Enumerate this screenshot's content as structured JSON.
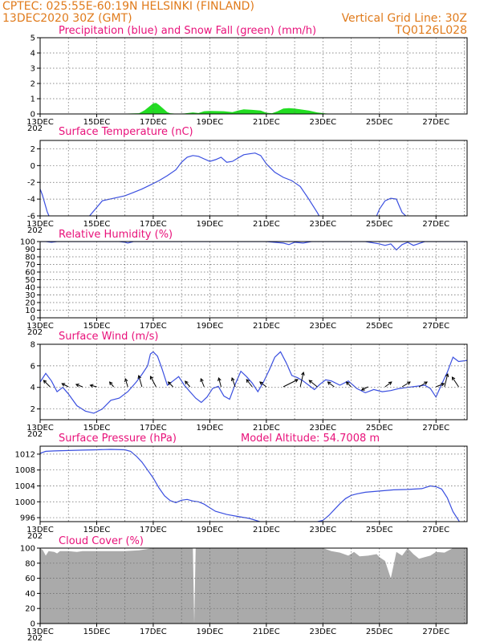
{
  "header": {
    "line1_left": "CPTEC:  025:55E-60:19N  HELSINKI (FINLAND)",
    "line2_left": "13DEC2020 30Z (GMT)",
    "line2_right": "Vertical Grid Line: 30Z",
    "line3_right": "TQ0126L028"
  },
  "x_axis": {
    "labels": [
      "13DEC",
      "15DEC",
      "17DEC",
      "19DEC",
      "21DEC",
      "23DEC",
      "25DEC",
      "27DEC"
    ],
    "label_days": [
      0,
      2,
      4,
      6,
      8,
      10,
      12,
      14
    ],
    "xlim_days": [
      0,
      15.1
    ],
    "year_stub": "202"
  },
  "colors": {
    "header": "#e07b1c",
    "panel_title": "#e8117a",
    "line": "#3a4fe0",
    "snow": "#22dd22",
    "cloud": "#aaaaaa",
    "grid": "#666666"
  },
  "chart_data": [
    {
      "type": "area",
      "title": "Precipitation (blue) and Snow Fall (green) (mm/h)",
      "ylim": [
        0,
        5
      ],
      "yticks": [
        0,
        1,
        2,
        3,
        4,
        5
      ],
      "series": [
        {
          "name": "Precipitation",
          "color": "#3a4fe0",
          "x": [
            0,
            15
          ],
          "values": [
            0,
            0
          ]
        },
        {
          "name": "Snow Fall",
          "color": "#22dd22",
          "x": [
            0,
            2.5,
            3.5,
            3.7,
            3.9,
            4.0,
            4.1,
            4.2,
            4.35,
            4.5,
            4.6,
            4.8,
            5.1,
            5.4,
            5.6,
            5.8,
            6.0,
            6.2,
            6.5,
            6.8,
            7.0,
            7.2,
            7.5,
            7.8,
            8.0,
            8.2,
            8.4,
            8.6,
            8.8,
            9.0,
            9.2,
            9.5,
            9.8,
            10.1,
            10.5,
            15.1
          ],
          "values": [
            0,
            0,
            0.05,
            0.25,
            0.55,
            0.7,
            0.72,
            0.6,
            0.35,
            0.12,
            0.05,
            0.02,
            0.03,
            0.1,
            0.06,
            0.18,
            0.2,
            0.19,
            0.18,
            0.12,
            0.22,
            0.3,
            0.27,
            0.22,
            0.08,
            0.05,
            0.18,
            0.35,
            0.38,
            0.35,
            0.3,
            0.22,
            0.1,
            0.03,
            0,
            0
          ]
        }
      ]
    },
    {
      "type": "line",
      "title": "Surface Temperature (nC)",
      "ylim": [
        -6,
        3
      ],
      "yticks": [
        -6,
        -4,
        -2,
        0,
        2
      ],
      "series": [
        {
          "name": "Surface Temperature",
          "x": [
            0,
            0.08,
            0.25,
            0.5,
            1,
            1.5,
            1.8,
            2.2,
            2.6,
            3.0,
            3.3,
            3.6,
            3.9,
            4.2,
            4.5,
            4.8,
            5.0,
            5.2,
            5.4,
            5.6,
            5.8,
            6.0,
            6.2,
            6.4,
            6.6,
            6.8,
            7.0,
            7.2,
            7.4,
            7.6,
            7.8,
            8.0,
            8.3,
            8.6,
            8.9,
            9.2,
            9.5,
            9.8,
            10.0,
            11.8,
            12.0,
            12.2,
            12.4,
            12.6,
            12.7,
            12.8,
            13.0,
            13.2,
            15.1
          ],
          "values": [
            -2.8,
            -3.5,
            -5.5,
            -7.5,
            -7.8,
            -7.0,
            -5.8,
            -4.2,
            -3.9,
            -3.6,
            -3.2,
            -2.8,
            -2.3,
            -1.8,
            -1.2,
            -0.5,
            0.4,
            1.0,
            1.2,
            1.1,
            0.8,
            0.5,
            0.7,
            1.0,
            0.4,
            0.5,
            0.9,
            1.3,
            1.4,
            1.5,
            1.2,
            0.2,
            -0.8,
            -1.4,
            -1.8,
            -2.5,
            -4.0,
            -5.6,
            -6.8,
            -6.8,
            -5.2,
            -4.2,
            -3.9,
            -4.0,
            -4.8,
            -5.6,
            -6.2,
            -7.0,
            -7.0
          ]
        }
      ]
    },
    {
      "type": "line",
      "title": "Relative Humidity (%)",
      "ylim": [
        0,
        100
      ],
      "yticks": [
        0,
        10,
        20,
        30,
        40,
        50,
        60,
        70,
        80,
        90,
        100
      ],
      "series": [
        {
          "name": "Relative Humidity",
          "x": [
            0,
            0.2,
            0.4,
            0.6,
            1.0,
            2.0,
            2.8,
            3.0,
            3.1,
            3.3,
            4.0,
            6.0,
            8.0,
            8.6,
            8.8,
            9.0,
            9.3,
            9.6,
            10.0,
            11.5,
            12.0,
            12.2,
            12.4,
            12.6,
            12.8,
            13.0,
            13.2,
            13.6,
            15.1
          ],
          "values": [
            100,
            100,
            99,
            100,
            100,
            100,
            100,
            99,
            98,
            100,
            100,
            100,
            100,
            98,
            96,
            99,
            98,
            100,
            100,
            100,
            97,
            95,
            97,
            89,
            96,
            99,
            95,
            100,
            100
          ]
        }
      ]
    },
    {
      "type": "line",
      "title": "Surface Wind (m/s)",
      "ylim": [
        1,
        8
      ],
      "yticks": [
        2,
        4,
        6,
        8
      ],
      "series": [
        {
          "name": "Surface Wind",
          "x": [
            0,
            0.2,
            0.4,
            0.6,
            0.8,
            1.0,
            1.3,
            1.6,
            1.9,
            2.2,
            2.5,
            2.8,
            3.1,
            3.4,
            3.6,
            3.8,
            3.9,
            4.0,
            4.15,
            4.3,
            4.5,
            4.7,
            4.9,
            5.1,
            5.3,
            5.5,
            5.7,
            5.9,
            6.1,
            6.3,
            6.5,
            6.7,
            6.9,
            7.1,
            7.3,
            7.5,
            7.7,
            7.9,
            8.1,
            8.3,
            8.5,
            8.7,
            8.9,
            9.1,
            9.3,
            9.5,
            9.7,
            9.9,
            10.1,
            10.3,
            10.6,
            10.9,
            11.2,
            11.5,
            11.8,
            12.1,
            12.4,
            12.7,
            13.0,
            13.3,
            13.6,
            13.8,
            14.0,
            14.2,
            14.4,
            14.6,
            14.8,
            15.1
          ],
          "values": [
            4.5,
            5.3,
            4.6,
            3.6,
            4.0,
            3.4,
            2.3,
            1.8,
            1.6,
            2.0,
            2.8,
            3.0,
            3.6,
            4.5,
            5.2,
            6.0,
            7.1,
            7.3,
            6.9,
            5.8,
            4.2,
            4.6,
            5.0,
            4.2,
            3.6,
            3.0,
            2.6,
            3.1,
            3.9,
            4.1,
            3.2,
            2.9,
            4.3,
            5.5,
            5.0,
            4.4,
            3.6,
            4.5,
            5.6,
            6.8,
            7.3,
            6.3,
            5.1,
            4.9,
            4.6,
            4.2,
            3.8,
            4.3,
            4.7,
            4.6,
            4.2,
            4.6,
            3.9,
            3.5,
            3.8,
            3.6,
            3.7,
            3.9,
            4.0,
            4.1,
            4.2,
            3.9,
            3.1,
            4.3,
            5.4,
            6.8,
            6.4,
            6.5
          ]
        }
      ],
      "arrows": [
        {
          "x": 0.35,
          "dx": -8,
          "dy": -8
        },
        {
          "x": 1.0,
          "dx": -8,
          "dy": -4
        },
        {
          "x": 1.5,
          "dx": -8,
          "dy": -3
        },
        {
          "x": 2.0,
          "dx": -8,
          "dy": -2
        },
        {
          "x": 2.6,
          "dx": -5,
          "dy": -6
        },
        {
          "x": 3.1,
          "dx": -3,
          "dy": -10
        },
        {
          "x": 3.6,
          "dx": -4,
          "dy": -14
        },
        {
          "x": 4.1,
          "dx": -7,
          "dy": -13
        },
        {
          "x": 4.7,
          "dx": -6,
          "dy": -6
        },
        {
          "x": 5.3,
          "dx": -6,
          "dy": -7
        },
        {
          "x": 5.8,
          "dx": -4,
          "dy": -10
        },
        {
          "x": 6.4,
          "dx": -3,
          "dy": -11
        },
        {
          "x": 6.9,
          "dx": -4,
          "dy": -11
        },
        {
          "x": 7.5,
          "dx": -7,
          "dy": -9
        },
        {
          "x": 8.0,
          "dx": -8,
          "dy": -6
        },
        {
          "x": 8.6,
          "dx": 18,
          "dy": -9
        },
        {
          "x": 9.2,
          "dx": 4,
          "dy": -18
        },
        {
          "x": 9.8,
          "dx": -10,
          "dy": -8
        },
        {
          "x": 10.4,
          "dx": -8,
          "dy": -6
        },
        {
          "x": 11.0,
          "dx": -6,
          "dy": -6
        },
        {
          "x": 11.6,
          "dx": -8,
          "dy": 4
        },
        {
          "x": 12.2,
          "dx": 8,
          "dy": -6
        },
        {
          "x": 12.8,
          "dx": 10,
          "dy": -6
        },
        {
          "x": 13.4,
          "dx": 10,
          "dy": -6
        },
        {
          "x": 14.0,
          "dx": 10,
          "dy": -4
        },
        {
          "x": 14.3,
          "dx": 4,
          "dy": -16
        },
        {
          "x": 14.8,
          "dx": -8,
          "dy": -12
        }
      ]
    },
    {
      "type": "line",
      "title": "Surface Pressure (hPa)",
      "annotation": "Model Altitude: 54.7008 m",
      "ylim": [
        995,
        1014
      ],
      "yticks": [
        996,
        1000,
        1004,
        1008,
        1012
      ],
      "series": [
        {
          "name": "Surface Pressure",
          "x": [
            0,
            0.2,
            0.5,
            1.0,
            1.5,
            2.0,
            2.5,
            3.0,
            3.2,
            3.4,
            3.6,
            3.8,
            4.0,
            4.2,
            4.4,
            4.6,
            4.8,
            5.0,
            5.2,
            5.4,
            5.6,
            5.8,
            6.0,
            6.2,
            6.6,
            7.0,
            7.4,
            8.0,
            9.5,
            10.0,
            10.2,
            10.4,
            10.6,
            10.8,
            11.0,
            11.2,
            11.5,
            12.0,
            12.5,
            13.0,
            13.5,
            13.8,
            14.0,
            14.2,
            14.4,
            14.6,
            15.1
          ],
          "values": [
            1012.2,
            1012.7,
            1012.8,
            1012.9,
            1013.0,
            1013.1,
            1013.2,
            1013.1,
            1012.7,
            1011.5,
            1010.0,
            1008.0,
            1006.0,
            1003.5,
            1001.5,
            1000.3,
            999.8,
            1000.4,
            1000.6,
            1000.2,
            1000.0,
            999.4,
            998.5,
            997.6,
            996.8,
            996.3,
            995.8,
            994.5,
            994.5,
            995.3,
            996.5,
            998.0,
            999.5,
            1000.8,
            1001.6,
            1002.0,
            1002.4,
            1002.7,
            1003.0,
            1003.1,
            1003.3,
            1004.0,
            1003.8,
            1003.2,
            1001.0,
            997.5,
            992.0
          ]
        }
      ]
    },
    {
      "type": "area",
      "title": "Cloud Cover (%)",
      "ylim": [
        0,
        100
      ],
      "yticks": [
        0,
        20,
        40,
        60,
        80,
        100
      ],
      "series": [
        {
          "name": "Cloud Cover",
          "color": "#aaaaaa",
          "x": [
            0,
            0.1,
            0.2,
            0.3,
            0.5,
            0.6,
            0.7,
            1.0,
            1.3,
            1.5,
            2.0,
            2.5,
            3.0,
            3.5,
            4.0,
            4.5,
            5.0,
            5.3,
            5.4,
            5.45,
            5.5,
            6.0,
            7.0,
            8.0,
            9.0,
            10.0,
            10.3,
            10.6,
            10.9,
            11.1,
            11.3,
            11.6,
            11.9,
            12.0,
            12.2,
            12.4,
            12.6,
            12.8,
            13.0,
            13.2,
            13.4,
            13.6,
            13.8,
            14.0,
            14.3,
            14.6,
            15.1
          ],
          "values": [
            100,
            97,
            90,
            96,
            95,
            93,
            96,
            96,
            95,
            96,
            96,
            96,
            96,
            97,
            100,
            100,
            100,
            100,
            100,
            0,
            100,
            100,
            100,
            100,
            100,
            100,
            96,
            94,
            90,
            95,
            89,
            90,
            92,
            88,
            83,
            60,
            95,
            90,
            100,
            92,
            86,
            88,
            90,
            95,
            94,
            100,
            100
          ]
        }
      ]
    }
  ]
}
